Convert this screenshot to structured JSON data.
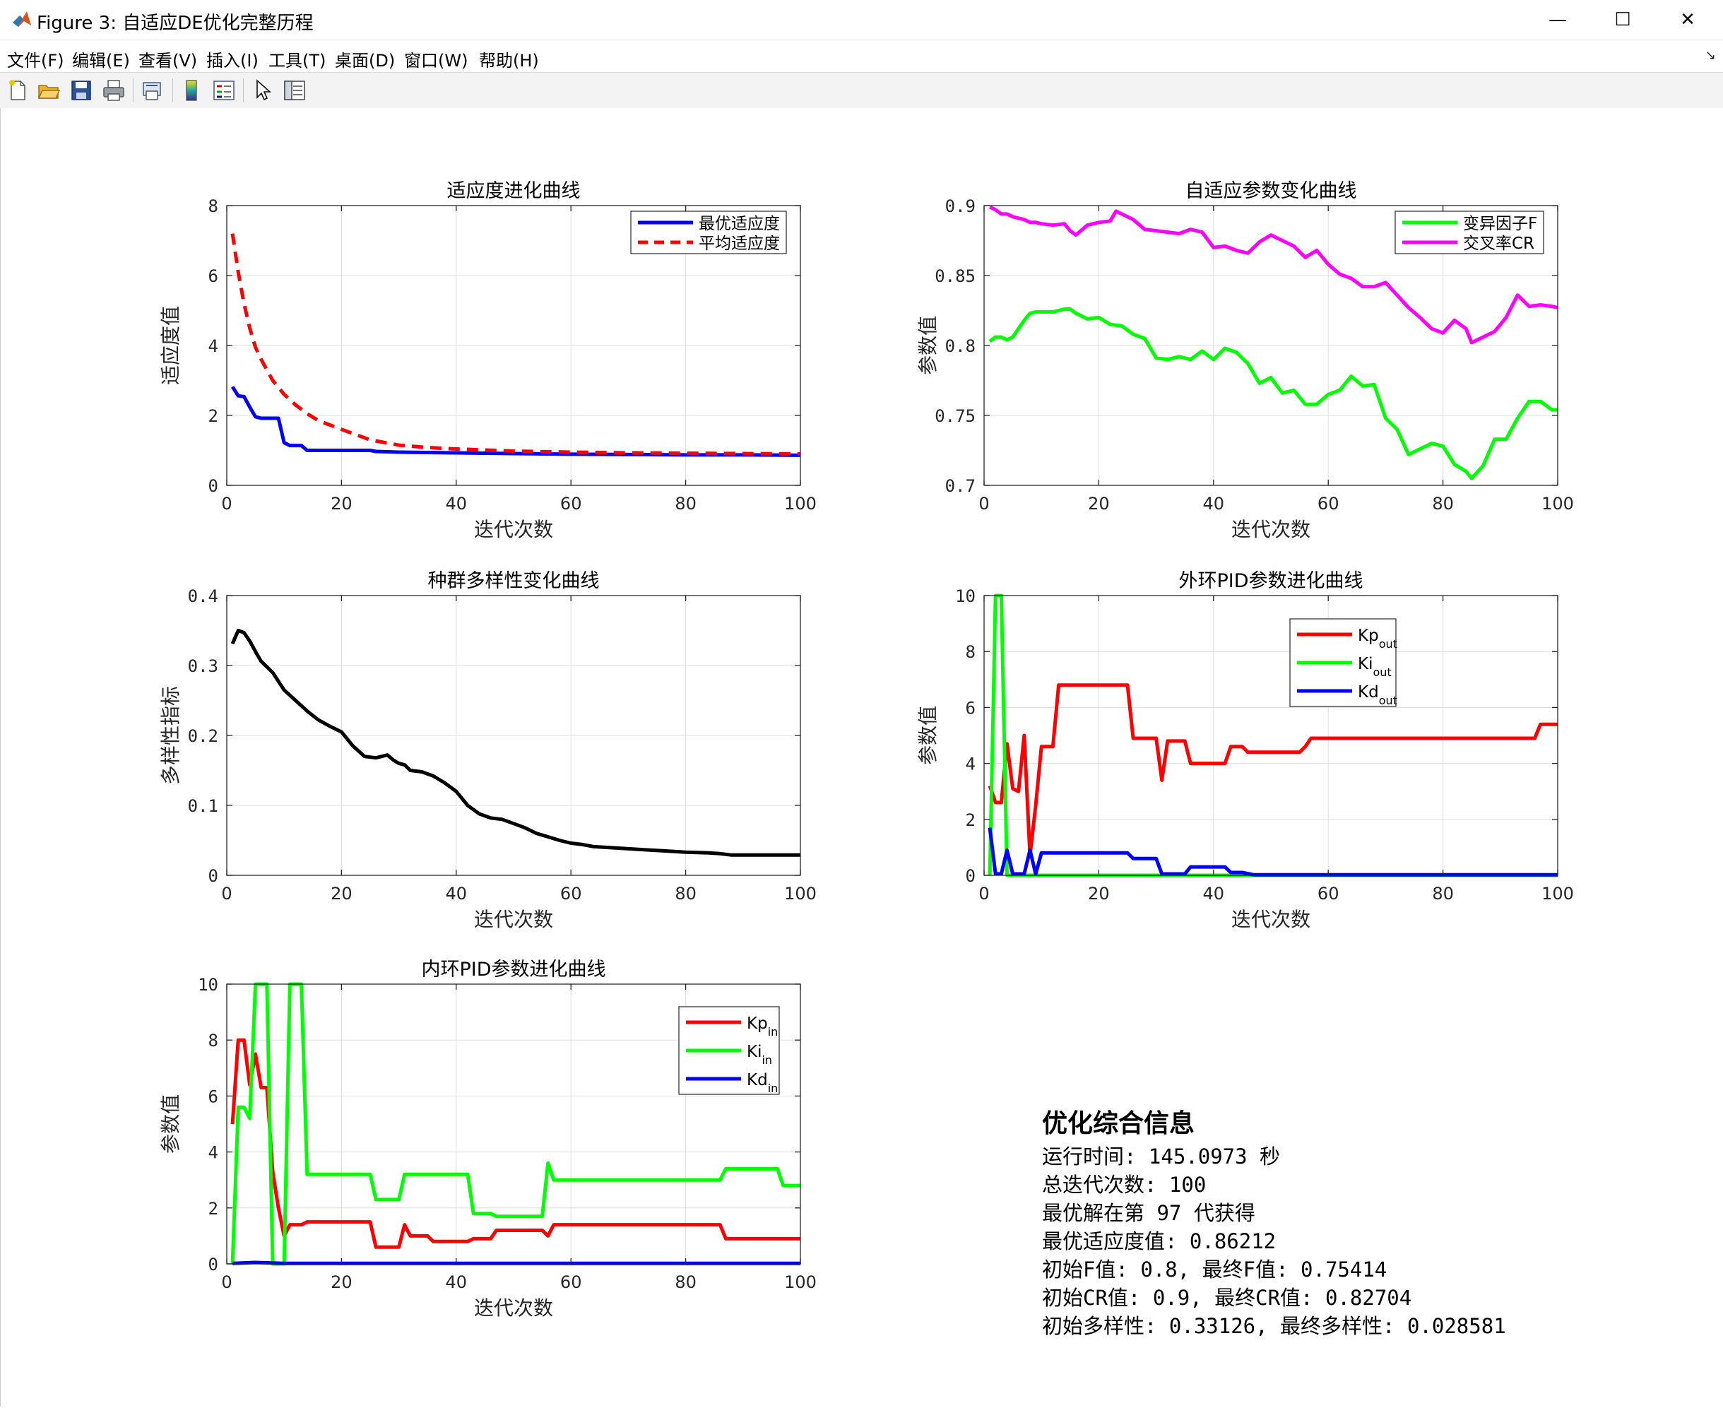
{
  "window": {
    "title": "Figure 3: 自适应DE优化完整历程",
    "minimize_label": "—",
    "maximize_label": "☐",
    "close_label": "✕"
  },
  "menu": [
    "文件(F)",
    "编辑(E)",
    "查看(V)",
    "插入(I)",
    "工具(T)",
    "桌面(D)",
    "窗口(W)",
    "帮助(H)"
  ],
  "toolbar_icons": [
    "new-figure-icon",
    "open-file-icon",
    "save-icon",
    "print-icon",
    "print-preview-icon",
    "colorbar-icon",
    "legend-icon",
    "pointer-icon",
    "property-inspector-icon"
  ],
  "colors": {
    "red": "#ff0000",
    "green": "#00ff00",
    "blue": "#0000ff",
    "magenta": "#ff00ff",
    "black": "#000000"
  },
  "chart_data": [
    {
      "type": "line",
      "title": "适应度进化曲线",
      "xlabel": "迭代次数",
      "ylabel": "适应度值",
      "xlim": [
        0,
        100
      ],
      "ylim": [
        0,
        8
      ],
      "xticks": [
        0,
        20,
        40,
        60,
        80,
        100
      ],
      "yticks": [
        0,
        2,
        4,
        6,
        8
      ],
      "grid": true,
      "legend_location": "top-right",
      "series": [
        {
          "name": "最优适应度",
          "color": "#0000ff",
          "style": "solid",
          "x": [
            1,
            2,
            3,
            4,
            5,
            6,
            7,
            8,
            9,
            10,
            11,
            12,
            13,
            14,
            20,
            25,
            26,
            30,
            35,
            40,
            50,
            60,
            70,
            80,
            90,
            100
          ],
          "y": [
            2.82,
            2.56,
            2.54,
            2.24,
            1.96,
            1.92,
            1.92,
            1.92,
            1.92,
            1.22,
            1.14,
            1.14,
            1.14,
            1.0,
            1.0,
            1.0,
            0.97,
            0.95,
            0.94,
            0.93,
            0.91,
            0.89,
            0.88,
            0.87,
            0.87,
            0.86
          ]
        },
        {
          "name": "平均适应度",
          "color": "#ff0000",
          "style": "dashed",
          "x": [
            1,
            2,
            3,
            4,
            5,
            6,
            8,
            10,
            12,
            14,
            16,
            20,
            25,
            30,
            35,
            40,
            50,
            60,
            70,
            80,
            90,
            100
          ],
          "y": [
            7.2,
            6.1,
            5.2,
            4.5,
            3.95,
            3.6,
            3.0,
            2.6,
            2.3,
            2.05,
            1.85,
            1.6,
            1.3,
            1.15,
            1.08,
            1.04,
            0.98,
            0.95,
            0.93,
            0.92,
            0.91,
            0.9
          ]
        }
      ]
    },
    {
      "type": "line",
      "title": "自适应参数变化曲线",
      "xlabel": "迭代次数",
      "ylabel": "参数值",
      "xlim": [
        0,
        100
      ],
      "ylim": [
        0.7,
        0.9
      ],
      "xticks": [
        0,
        20,
        40,
        60,
        80,
        100
      ],
      "yticks": [
        0.7,
        0.75,
        0.8,
        0.85,
        0.9
      ],
      "ytick_labels": [
        "0.7",
        "0.75",
        "0.8",
        "0.85",
        "0.9"
      ],
      "grid": true,
      "legend_location": "top-right",
      "series": [
        {
          "name": "变异因子F",
          "color": "#00ff00",
          "style": "solid",
          "x": [
            1,
            2,
            3,
            4,
            5,
            6,
            7,
            8,
            9,
            10,
            12,
            14,
            15,
            16,
            18,
            20,
            22,
            24,
            26,
            28,
            30,
            32,
            34,
            36,
            38,
            40,
            42,
            44,
            46,
            48,
            50,
            52,
            54,
            56,
            58,
            60,
            62,
            64,
            66,
            68,
            70,
            72,
            74,
            76,
            78,
            80,
            82,
            84,
            85,
            87,
            89,
            91,
            93,
            95,
            97,
            99,
            100
          ],
          "y": [
            0.803,
            0.806,
            0.806,
            0.804,
            0.806,
            0.812,
            0.818,
            0.823,
            0.824,
            0.824,
            0.824,
            0.826,
            0.826,
            0.823,
            0.819,
            0.82,
            0.815,
            0.814,
            0.808,
            0.805,
            0.791,
            0.79,
            0.792,
            0.79,
            0.796,
            0.79,
            0.798,
            0.795,
            0.787,
            0.773,
            0.777,
            0.766,
            0.768,
            0.758,
            0.758,
            0.765,
            0.768,
            0.778,
            0.771,
            0.772,
            0.748,
            0.74,
            0.722,
            0.726,
            0.73,
            0.728,
            0.715,
            0.71,
            0.705,
            0.714,
            0.733,
            0.733,
            0.748,
            0.76,
            0.76,
            0.754,
            0.754
          ]
        },
        {
          "name": "交叉率CR",
          "color": "#ff00ff",
          "style": "solid",
          "x": [
            1,
            2,
            3,
            4,
            5,
            6,
            7,
            8,
            9,
            10,
            12,
            14,
            15,
            16,
            18,
            20,
            22,
            23,
            24,
            26,
            28,
            30,
            32,
            34,
            36,
            38,
            40,
            42,
            44,
            46,
            48,
            50,
            52,
            54,
            56,
            58,
            60,
            62,
            64,
            66,
            68,
            70,
            72,
            74,
            76,
            78,
            80,
            82,
            84,
            85,
            87,
            89,
            91,
            93,
            95,
            97,
            99,
            100
          ],
          "y": [
            0.899,
            0.897,
            0.894,
            0.894,
            0.892,
            0.891,
            0.89,
            0.888,
            0.888,
            0.887,
            0.886,
            0.887,
            0.882,
            0.879,
            0.886,
            0.888,
            0.889,
            0.896,
            0.894,
            0.89,
            0.883,
            0.882,
            0.881,
            0.88,
            0.883,
            0.881,
            0.87,
            0.871,
            0.868,
            0.866,
            0.874,
            0.879,
            0.875,
            0.871,
            0.863,
            0.868,
            0.858,
            0.851,
            0.848,
            0.842,
            0.842,
            0.845,
            0.836,
            0.827,
            0.82,
            0.812,
            0.809,
            0.818,
            0.812,
            0.802,
            0.806,
            0.81,
            0.82,
            0.836,
            0.828,
            0.829,
            0.828,
            0.827
          ]
        }
      ]
    },
    {
      "type": "line",
      "title": "种群多样性变化曲线",
      "xlabel": "迭代次数",
      "ylabel": "多样性指标",
      "xlim": [
        0,
        100
      ],
      "ylim": [
        0,
        0.4
      ],
      "xticks": [
        0,
        20,
        40,
        60,
        80,
        100
      ],
      "yticks": [
        0,
        0.1,
        0.2,
        0.3,
        0.4
      ],
      "ytick_labels": [
        "0",
        "0.1",
        "0.2",
        "0.3",
        "0.4"
      ],
      "grid": true,
      "series": [
        {
          "name": "",
          "color": "#000000",
          "style": "solid",
          "x": [
            1,
            2,
            3,
            4,
            5,
            6,
            8,
            10,
            12,
            14,
            16,
            18,
            20,
            22,
            24,
            26,
            28,
            29,
            30,
            31,
            32,
            34,
            36,
            38,
            40,
            42,
            44,
            46,
            48,
            50,
            52,
            54,
            56,
            58,
            60,
            62,
            64,
            66,
            70,
            72,
            74,
            76,
            80,
            84,
            86,
            88,
            90,
            95,
            100
          ],
          "y": [
            0.331,
            0.35,
            0.347,
            0.335,
            0.32,
            0.306,
            0.29,
            0.265,
            0.25,
            0.235,
            0.222,
            0.213,
            0.205,
            0.185,
            0.17,
            0.168,
            0.172,
            0.165,
            0.16,
            0.158,
            0.15,
            0.148,
            0.142,
            0.132,
            0.12,
            0.1,
            0.088,
            0.082,
            0.08,
            0.074,
            0.068,
            0.06,
            0.055,
            0.05,
            0.046,
            0.044,
            0.041,
            0.04,
            0.038,
            0.037,
            0.036,
            0.035,
            0.033,
            0.032,
            0.031,
            0.029,
            0.029,
            0.029,
            0.029
          ]
        }
      ]
    },
    {
      "type": "line",
      "title": "外环PID参数进化曲线",
      "xlabel": "迭代次数",
      "ylabel": "参数值",
      "xlim": [
        0,
        100
      ],
      "ylim": [
        0,
        10
      ],
      "xticks": [
        0,
        20,
        40,
        60,
        80,
        100
      ],
      "yticks": [
        0,
        2,
        4,
        6,
        8,
        10
      ],
      "grid": true,
      "legend_location": "top-right",
      "series": [
        {
          "name": "Kp",
          "sub": "out",
          "color": "#ff0000",
          "style": "solid",
          "x": [
            1,
            2,
            3,
            4,
            5,
            6,
            7,
            8,
            9,
            10,
            11,
            12,
            13,
            14,
            20,
            25,
            26,
            30,
            31,
            32,
            35,
            36,
            38,
            42,
            43,
            45,
            46,
            48,
            50,
            55,
            56,
            57,
            60,
            70,
            80,
            90,
            95,
            96,
            97,
            100
          ],
          "y": [
            3.2,
            2.6,
            2.6,
            4.7,
            3.1,
            3.0,
            5.0,
            0.7,
            2.5,
            4.6,
            4.6,
            4.6,
            6.8,
            6.8,
            6.8,
            6.8,
            4.9,
            4.9,
            3.4,
            4.8,
            4.8,
            4.0,
            4.0,
            4.0,
            4.6,
            4.6,
            4.4,
            4.4,
            4.4,
            4.4,
            4.6,
            4.9,
            4.9,
            4.9,
            4.9,
            4.9,
            4.9,
            4.9,
            5.4,
            5.4
          ]
        },
        {
          "name": "Ki",
          "sub": "out",
          "color": "#00ff00",
          "style": "solid",
          "x": [
            1,
            2,
            3,
            4,
            5,
            6,
            10,
            20,
            40,
            60,
            80,
            100
          ],
          "y": [
            0.0,
            10.0,
            10.0,
            0.0,
            0.0,
            0.0,
            0.0,
            0.0,
            0.0,
            0.0,
            0.0,
            0.0
          ]
        },
        {
          "name": "Kd",
          "sub": "out",
          "color": "#0000ff",
          "style": "solid",
          "x": [
            1,
            2,
            3,
            4,
            5,
            6,
            7,
            8,
            9,
            10,
            12,
            20,
            25,
            26,
            30,
            31,
            32,
            35,
            36,
            42,
            43,
            45,
            47,
            50,
            60,
            80,
            100
          ],
          "y": [
            1.7,
            0.05,
            0.05,
            0.9,
            0.05,
            0.05,
            0.05,
            0.9,
            0.05,
            0.8,
            0.8,
            0.8,
            0.8,
            0.6,
            0.6,
            0.05,
            0.05,
            0.05,
            0.3,
            0.3,
            0.1,
            0.1,
            0.02,
            0.02,
            0.02,
            0.02,
            0.02
          ]
        }
      ]
    },
    {
      "type": "line",
      "title": "内环PID参数进化曲线",
      "xlabel": "迭代次数",
      "ylabel": "参数值",
      "xlim": [
        0,
        100
      ],
      "ylim": [
        0,
        10
      ],
      "xticks": [
        0,
        20,
        40,
        60,
        80,
        100
      ],
      "yticks": [
        0,
        2,
        4,
        6,
        8,
        10
      ],
      "grid": true,
      "legend_location": "top-right",
      "series": [
        {
          "name": "Kp",
          "sub": "in",
          "color": "#ff0000",
          "style": "solid",
          "x": [
            1,
            2,
            3,
            4,
            5,
            6,
            7,
            8,
            9,
            10,
            11,
            12,
            13,
            14,
            20,
            25,
            26,
            30,
            31,
            32,
            35,
            36,
            40,
            42,
            43,
            46,
            47,
            50,
            55,
            56,
            57,
            60,
            70,
            80,
            86,
            87,
            90,
            95,
            96,
            97,
            100
          ],
          "y": [
            5.0,
            8.0,
            8.0,
            6.4,
            7.5,
            6.3,
            6.3,
            3.3,
            2.0,
            1.0,
            1.4,
            1.4,
            1.4,
            1.5,
            1.5,
            1.5,
            0.6,
            0.6,
            1.4,
            1.0,
            1.0,
            0.8,
            0.8,
            0.8,
            0.9,
            0.9,
            1.2,
            1.2,
            1.2,
            1.0,
            1.4,
            1.4,
            1.4,
            1.4,
            1.4,
            0.9,
            0.9,
            0.9,
            0.9,
            0.9,
            0.9
          ]
        },
        {
          "name": "Ki",
          "sub": "in",
          "color": "#00ff00",
          "style": "solid",
          "x": [
            1,
            2,
            3,
            4,
            5,
            6,
            7,
            8,
            9,
            10,
            11,
            12,
            13,
            14,
            20,
            25,
            26,
            30,
            31,
            35,
            36,
            40,
            42,
            43,
            46,
            47,
            50,
            55,
            56,
            57,
            60,
            70,
            80,
            86,
            87,
            90,
            95,
            96,
            97,
            100
          ],
          "y": [
            0.0,
            5.6,
            5.6,
            5.2,
            10.0,
            10.0,
            10.0,
            0.0,
            0.0,
            0.0,
            10.0,
            10.0,
            10.0,
            3.2,
            3.2,
            3.2,
            2.3,
            2.3,
            3.2,
            3.2,
            3.2,
            3.2,
            3.2,
            1.8,
            1.8,
            1.7,
            1.7,
            1.7,
            3.6,
            3.0,
            3.0,
            3.0,
            3.0,
            3.0,
            3.4,
            3.4,
            3.4,
            3.4,
            2.8,
            2.8
          ]
        },
        {
          "name": "Kd",
          "sub": "in",
          "color": "#0000ff",
          "style": "solid",
          "x": [
            1,
            5,
            10,
            20,
            40,
            60,
            80,
            100
          ],
          "y": [
            0.02,
            0.05,
            0.02,
            0.02,
            0.02,
            0.02,
            0.02,
            0.02
          ]
        }
      ]
    }
  ],
  "info": {
    "heading": "优化综合信息",
    "lines": [
      "运行时间: 145.0973 秒",
      "总迭代次数: 100",
      "最优解在第 97 代获得",
      "最优适应度值: 0.86212",
      "初始F值: 0.8, 最终F值: 0.75414",
      "初始CR值: 0.9, 最终CR值: 0.82704",
      "初始多样性: 0.33126, 最终多样性: 0.028581"
    ]
  }
}
